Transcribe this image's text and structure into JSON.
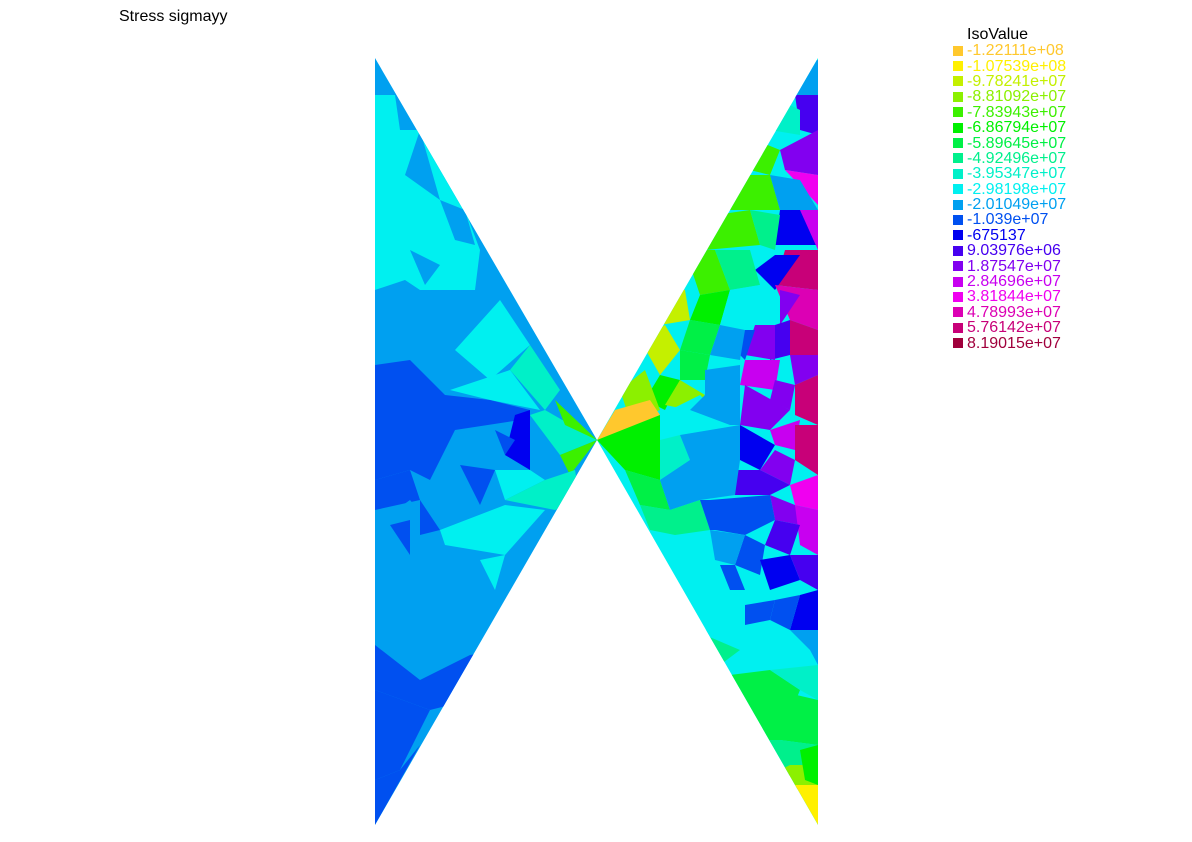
{
  "title": "Stress sigmayy",
  "legend": {
    "title": "IsoValue",
    "entries": [
      {
        "label": "-1.22111e+08",
        "color": "#FFC82D"
      },
      {
        "label": "-1.07539e+08",
        "color": "#FFF000"
      },
      {
        "label": "-9.78241e+07",
        "color": "#C4F000"
      },
      {
        "label": "-8.81092e+07",
        "color": "#8CF000"
      },
      {
        "label": "-7.83943e+07",
        "color": "#3CF000"
      },
      {
        "label": "-6.86794e+07",
        "color": "#00F000"
      },
      {
        "label": "-5.89645e+07",
        "color": "#00F046"
      },
      {
        "label": "-4.92496e+07",
        "color": "#00F08C"
      },
      {
        "label": "-3.95347e+07",
        "color": "#00F0C8"
      },
      {
        "label": "-2.98198e+07",
        "color": "#00F0F0"
      },
      {
        "label": "-2.01049e+07",
        "color": "#00A0F0"
      },
      {
        "label": "-1.039e+07",
        "color": "#0050F0"
      },
      {
        "label": "-675137",
        "color": "#0000F0"
      },
      {
        "label": "9.03976e+06",
        "color": "#4600F0"
      },
      {
        "label": "1.87547e+07",
        "color": "#8200F0"
      },
      {
        "label": "2.84696e+07",
        "color": "#C800F0"
      },
      {
        "label": "3.81844e+07",
        "color": "#F000F0"
      },
      {
        "label": "4.78993e+07",
        "color": "#DC00B4"
      },
      {
        "label": "5.76142e+07",
        "color": "#C80078"
      },
      {
        "label": "8.19015e+07",
        "color": "#A0003C"
      }
    ]
  }
}
